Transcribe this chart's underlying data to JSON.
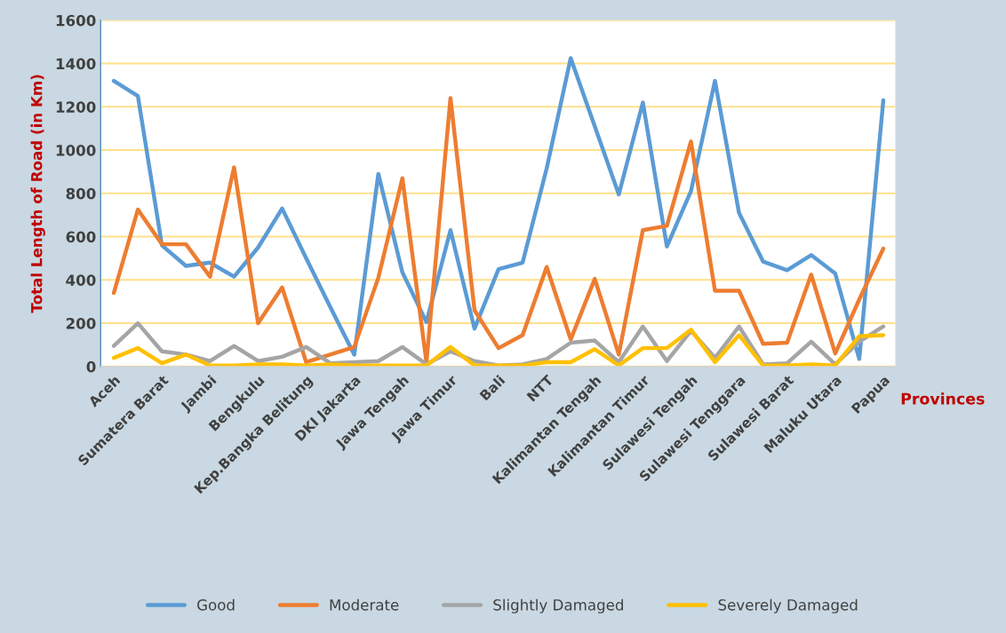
{
  "chart_data": {
    "type": "line",
    "xlabel": "Provinces",
    "ylabel": "Total Length of Road (in Km)",
    "categories": [
      "Aceh",
      null,
      "Sumatera Barat",
      null,
      "Jambi",
      null,
      "Bengkulu",
      null,
      "Kep.Bangka Belitung",
      null,
      "DKI Jakarta",
      null,
      "Jawa Tengah",
      null,
      "Jawa Timur",
      null,
      "Bali",
      null,
      "NTT",
      null,
      "Kalimantan Tengah",
      null,
      "Kalimantan Timur",
      null,
      "Sulawesi Tengah",
      null,
      "Sulawesi Tenggara",
      null,
      "Sulawesi Barat",
      null,
      "Maluku Utara",
      null,
      "Papua"
    ],
    "series": [
      {
        "name": "Good",
        "color": "#5b9bd5",
        "values": [
          1320,
          1250,
          560,
          465,
          480,
          415,
          550,
          730,
          500,
          275,
          55,
          890,
          435,
          205,
          630,
          175,
          450,
          480,
          915,
          1425,
          1110,
          795,
          1220,
          555,
          810,
          1320,
          710,
          485,
          445,
          515,
          430,
          35,
          1230
        ]
      },
      {
        "name": "Moderate",
        "color": "#ed7d31",
        "values": [
          340,
          725,
          565,
          565,
          415,
          920,
          200,
          365,
          20,
          55,
          90,
          410,
          870,
          20,
          1240,
          260,
          85,
          145,
          460,
          125,
          405,
          55,
          630,
          650,
          1040,
          350,
          350,
          105,
          110,
          425,
          60,
          310,
          545
        ]
      },
      {
        "name": "Slightly Damaged",
        "color": "#a5a5a5",
        "values": [
          95,
          200,
          70,
          55,
          25,
          95,
          25,
          45,
          90,
          15,
          null,
          25,
          90,
          10,
          70,
          25,
          5,
          10,
          35,
          110,
          120,
          20,
          185,
          25,
          165,
          40,
          185,
          10,
          15,
          115,
          10,
          115,
          185
        ]
      },
      {
        "name": "Severely Damaged",
        "color": "#ffc000",
        "values": [
          40,
          85,
          15,
          55,
          5,
          5,
          10,
          10,
          5,
          10,
          5,
          5,
          5,
          5,
          90,
          5,
          5,
          5,
          20,
          20,
          80,
          5,
          85,
          85,
          170,
          20,
          145,
          5,
          5,
          10,
          5,
          140,
          145
        ]
      }
    ],
    "ylim": [
      0,
      1600
    ],
    "yticks": [
      0,
      200,
      400,
      600,
      800,
      1000,
      1200,
      1400,
      1600
    ],
    "grid": "y",
    "legend": "bottom",
    "marker": "none",
    "line_style": "solid"
  }
}
